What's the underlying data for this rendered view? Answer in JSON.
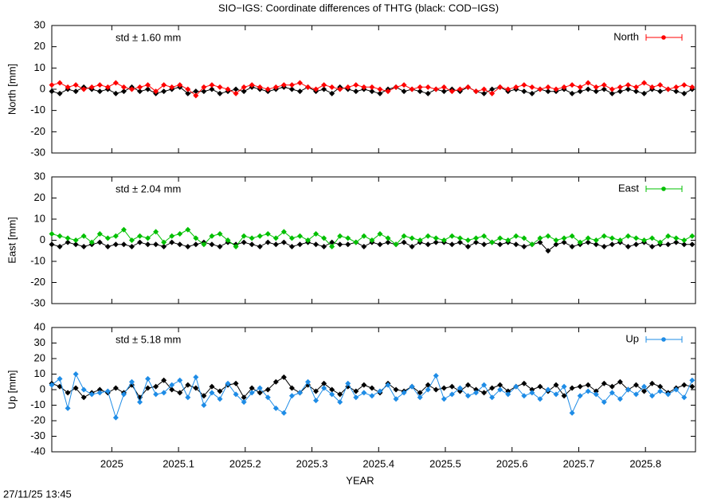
{
  "title": "SIO−IGS: Coordinate differences of THTG (black: COD−IGS)",
  "timestamp": "27/11/25 13:45",
  "chart_data": {
    "type": "line",
    "xlabel": "YEAR",
    "xlim": [
      2024.91,
      2025.875
    ],
    "xticks": [
      2025,
      2025.1,
      2025.2,
      2025.3,
      2025.4,
      2025.5,
      2025.6,
      2025.7,
      2025.8
    ],
    "x": [
      2024.91,
      2024.922,
      2024.934,
      2024.946,
      2024.958,
      2024.97,
      2024.982,
      2024.994,
      2025.006,
      2025.018,
      2025.03,
      2025.042,
      2025.054,
      2025.066,
      2025.078,
      2025.09,
      2025.102,
      2025.114,
      2025.126,
      2025.138,
      2025.15,
      2025.162,
      2025.174,
      2025.186,
      2025.198,
      2025.21,
      2025.222,
      2025.234,
      2025.246,
      2025.258,
      2025.27,
      2025.282,
      2025.294,
      2025.306,
      2025.318,
      2025.33,
      2025.342,
      2025.354,
      2025.366,
      2025.378,
      2025.39,
      2025.402,
      2025.414,
      2025.426,
      2025.438,
      2025.45,
      2025.462,
      2025.474,
      2025.486,
      2025.498,
      2025.51,
      2025.522,
      2025.534,
      2025.546,
      2025.558,
      2025.57,
      2025.582,
      2025.594,
      2025.606,
      2025.618,
      2025.63,
      2025.642,
      2025.654,
      2025.666,
      2025.678,
      2025.69,
      2025.702,
      2025.714,
      2025.726,
      2025.738,
      2025.75,
      2025.762,
      2025.774,
      2025.786,
      2025.798,
      2025.81,
      2025.822,
      2025.834,
      2025.846,
      2025.858,
      2025.87
    ],
    "panels": [
      {
        "ylabel": "North [mm]",
        "annotation": "std ± 1.60 mm",
        "ylim": [
          -30,
          30
        ],
        "yticks": [
          -30,
          -20,
          -10,
          0,
          10,
          20,
          30
        ],
        "series": [
          {
            "color": "#000000",
            "values": [
              -1,
              -2,
              0,
              -1,
              1,
              0,
              -1,
              0,
              -2,
              -1,
              1,
              -1,
              0,
              -2,
              -1,
              0,
              1,
              -2,
              -1,
              -1,
              0,
              -2,
              -1,
              0,
              -1,
              1,
              0,
              -1,
              0,
              1,
              0,
              -1,
              1,
              -1,
              0,
              -2,
              1,
              0,
              -1,
              0,
              -1,
              -2,
              0,
              1,
              -1,
              0,
              -1,
              -2,
              0,
              -1,
              0,
              -1,
              1,
              -1,
              -2,
              0,
              1,
              -1,
              0,
              -1,
              -2,
              0,
              -1,
              -1,
              0,
              -2,
              -1,
              0,
              -1,
              0,
              -2,
              -1,
              0,
              -1,
              -2,
              0,
              -1,
              0,
              -1,
              -2,
              0
            ]
          },
          {
            "name": "North",
            "color": "#ff0000",
            "values": [
              2,
              3,
              1,
              2,
              0,
              1,
              2,
              1,
              3,
              1,
              0,
              1,
              2,
              -1,
              2,
              1,
              2,
              0,
              -3,
              1,
              2,
              1,
              0,
              -2,
              1,
              2,
              1,
              0,
              1,
              2,
              2,
              3,
              1,
              0,
              2,
              1,
              0,
              1,
              2,
              1,
              1,
              0,
              -1,
              1,
              2,
              0,
              1,
              1,
              0,
              1,
              -1,
              0,
              1,
              -1,
              0,
              -2,
              1,
              0,
              1,
              2,
              1,
              0,
              1,
              0,
              1,
              2,
              1,
              3,
              1,
              2,
              0,
              1,
              2,
              1,
              3,
              1,
              2,
              0,
              1,
              2,
              1
            ]
          }
        ]
      },
      {
        "ylabel": "East [mm]",
        "annotation": "std ± 2.04 mm",
        "ylim": [
          -30,
          30
        ],
        "yticks": [
          -30,
          -20,
          -10,
          0,
          10,
          20,
          30
        ],
        "series": [
          {
            "color": "#000000",
            "values": [
              -2,
              -3,
              -1,
              -2,
              -3,
              -2,
              -1,
              -3,
              -2,
              -2,
              -3,
              -1,
              -2,
              -2,
              -3,
              -1,
              -2,
              -3,
              -2,
              -1,
              -2,
              -3,
              -1,
              -2,
              -1,
              -2,
              -3,
              -1,
              -2,
              -1,
              -3,
              -2,
              -1,
              -2,
              -3,
              -1,
              -2,
              -2,
              -1,
              -3,
              -1,
              -2,
              -1,
              -2,
              -1,
              -3,
              -1,
              -2,
              -1,
              -1,
              -2,
              -1,
              -3,
              -1,
              -2,
              -1,
              -2,
              -1,
              -2,
              -3,
              -2,
              -1,
              -5,
              -2,
              -1,
              -3,
              -2,
              -1,
              -2,
              -3,
              -2,
              -1,
              -3,
              -2,
              -1,
              -3,
              -2,
              -2,
              -1,
              -2,
              -2
            ]
          },
          {
            "name": "East",
            "color": "#00c000",
            "values": [
              3,
              2,
              1,
              0,
              2,
              -1,
              3,
              1,
              2,
              5,
              0,
              2,
              1,
              4,
              -1,
              2,
              3,
              5,
              1,
              -2,
              2,
              3,
              0,
              -3,
              2,
              1,
              2,
              3,
              1,
              4,
              1,
              2,
              0,
              3,
              1,
              -3,
              2,
              1,
              -1,
              2,
              0,
              3,
              1,
              -2,
              2,
              1,
              0,
              2,
              1,
              0,
              2,
              1,
              0,
              1,
              2,
              -1,
              1,
              0,
              2,
              1,
              -2,
              1,
              2,
              0,
              1,
              2,
              -1,
              1,
              0,
              2,
              1,
              0,
              2,
              1,
              0,
              1,
              -1,
              2,
              1,
              0,
              2
            ]
          }
        ]
      },
      {
        "ylabel": "Up [mm]",
        "annotation": "std ± 5.18 mm",
        "ylim": [
          -40,
          40
        ],
        "yticks": [
          -40,
          -30,
          -20,
          -10,
          0,
          10,
          20,
          30,
          40
        ],
        "series": [
          {
            "color": "#000000",
            "values": [
              4,
              2,
              -2,
              1,
              -5,
              -2,
              0,
              -2,
              1,
              -2,
              3,
              -5,
              1,
              2,
              6,
              0,
              -2,
              3,
              1,
              -4,
              2,
              -1,
              3,
              4,
              -5,
              1,
              -2,
              0,
              5,
              8,
              1,
              -2,
              3,
              -1,
              4,
              0,
              -3,
              2,
              -1,
              3,
              1,
              -2,
              4,
              0,
              -1,
              2,
              -2,
              3,
              0,
              1,
              2,
              -1,
              3,
              0,
              -2,
              1,
              3,
              -1,
              2,
              4,
              0,
              2,
              -1,
              3,
              -4,
              1,
              2,
              3,
              -1,
              4,
              2,
              5,
              0,
              3,
              -1,
              4,
              2,
              -2,
              1,
              3,
              2
            ]
          },
          {
            "name": "Up",
            "color": "#1e8ce6",
            "values": [
              3,
              7,
              -12,
              10,
              0,
              -3,
              -2,
              -1,
              -18,
              -3,
              5,
              -8,
              7,
              -3,
              -2,
              3,
              6,
              -5,
              8,
              -10,
              -2,
              -6,
              4,
              -3,
              -8,
              -2,
              1,
              -5,
              -12,
              -15,
              -4,
              -2,
              5,
              -7,
              1,
              -3,
              -8,
              4,
              -5,
              -2,
              -4,
              -1,
              3,
              -6,
              -2,
              2,
              -5,
              0,
              9,
              -6,
              -3,
              1,
              -4,
              -2,
              3,
              -5,
              0,
              -3,
              2,
              -4,
              -2,
              -6,
              0,
              -3,
              2,
              -15,
              -4,
              -1,
              -3,
              -8,
              -2,
              -6,
              0,
              -3,
              2,
              -4,
              -1,
              -3,
              0,
              -5,
              6
            ]
          }
        ]
      }
    ]
  }
}
